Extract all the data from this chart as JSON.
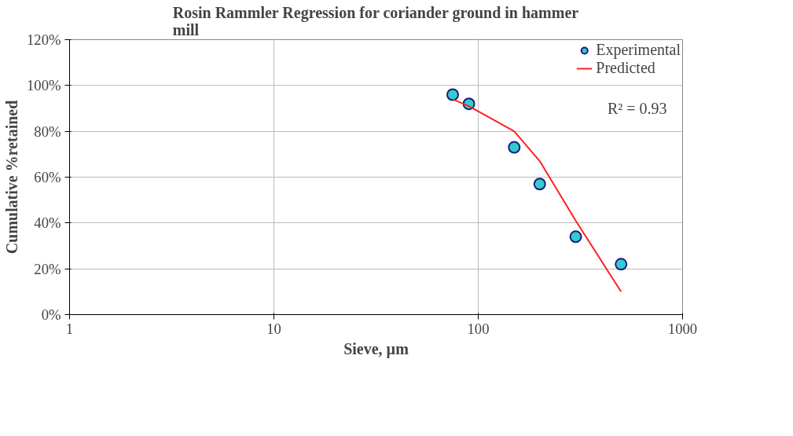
{
  "chart_data": {
    "type": "scatter",
    "title": "Rosin Rammler Regression for coriander ground in hammer mill",
    "xlabel": "Sieve, µm",
    "ylabel": "Cumulative %retained",
    "log": "x",
    "grid": true,
    "legend": "top right",
    "xlim": [
      1,
      1000
    ],
    "xticks": [
      1,
      10,
      100,
      1000
    ],
    "ylim": [
      0,
      120
    ],
    "yticks": [
      {
        "value": 0,
        "label": "0%"
      },
      {
        "value": 20,
        "label": "20%"
      },
      {
        "value": 40,
        "label": "40%"
      },
      {
        "value": 60,
        "label": "60%"
      },
      {
        "value": 80,
        "label": "80%"
      },
      {
        "value": 100,
        "label": "100%"
      },
      {
        "value": 120,
        "label": "120%"
      }
    ],
    "annotations": [
      "R² = 0.93"
    ],
    "series": [
      {
        "name": "Experimental",
        "marker": "circle",
        "color": "#33cccc",
        "x": [
          75,
          90,
          150,
          200,
          300,
          500
        ],
        "values": [
          96,
          92,
          73,
          57,
          34,
          22
        ]
      },
      {
        "name": "Predicted",
        "type": "line",
        "color": "#ff2020",
        "x": [
          75,
          90,
          150,
          200,
          300,
          500
        ],
        "values": [
          94,
          91,
          80,
          67,
          41,
          10
        ]
      }
    ]
  }
}
